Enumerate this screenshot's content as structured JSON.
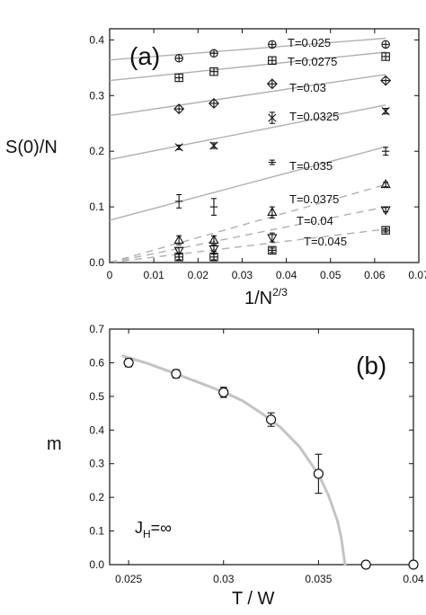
{
  "chart_data": [
    {
      "type": "scatter",
      "panel_label": "(a)",
      "xlabel_main": "1/N",
      "xlabel_exponent": "2/3",
      "ylabel": "S(0)/N",
      "xlim": [
        0,
        0.07
      ],
      "ylim": [
        0,
        0.42
      ],
      "xticks": [
        "0",
        "0.01",
        "0.02",
        "0.03",
        "0.04",
        "0.05",
        "0.06",
        "0.07"
      ],
      "yticks": [
        "0.0",
        "0.1",
        "0.2",
        "0.3",
        "0.4"
      ],
      "series": [
        {
          "name": "T=0.025",
          "marker": "circle-plus",
          "x": [
            0.0157,
            0.0236,
            0.0368,
            0.0625
          ],
          "y": [
            0.367,
            0.376,
            0.392,
            0.392
          ],
          "fit": [
            [
              0,
              0.364
            ],
            [
              0.0625,
              0.403
            ]
          ],
          "fit_style": "solid"
        },
        {
          "name": "T=0.0275",
          "marker": "square-plus",
          "x": [
            0.0157,
            0.0236,
            0.0368,
            0.0625
          ],
          "y": [
            0.332,
            0.343,
            0.363,
            0.37
          ],
          "fit": [
            [
              0,
              0.327
            ],
            [
              0.0625,
              0.378
            ]
          ],
          "fit_style": "solid"
        },
        {
          "name": "T=0.03",
          "marker": "diamond-plus",
          "x": [
            0.0157,
            0.0236,
            0.0368,
            0.0625
          ],
          "y": [
            0.276,
            0.286,
            0.321,
            0.327
          ],
          "fit": [
            [
              0,
              0.264
            ],
            [
              0.0625,
              0.338
            ]
          ],
          "fit_style": "solid"
        },
        {
          "name": "T=0.0325",
          "marker": "cross",
          "x": [
            0.0157,
            0.0236,
            0.0368,
            0.0625
          ],
          "y": [
            0.207,
            0.21,
            0.26,
            0.272
          ],
          "err": [
            0.004,
            0.005,
            0.01,
            0.005
          ],
          "fit": [
            [
              0,
              0.185
            ],
            [
              0.0625,
              0.283
            ]
          ],
          "fit_style": "solid"
        },
        {
          "name": "T=0.035",
          "marker": "errorbar",
          "x": [
            0.0157,
            0.0236,
            0.0368,
            0.0625
          ],
          "y": [
            0.11,
            0.1,
            0.18,
            0.2
          ],
          "err": [
            0.012,
            0.015,
            0.004,
            0.007
          ],
          "fit": [
            [
              0,
              0.076
            ],
            [
              0.0625,
              0.208
            ]
          ],
          "fit_style": "solid"
        },
        {
          "name": "T=0.0375",
          "marker": "triangle-up",
          "x": [
            0.0157,
            0.0236,
            0.0368,
            0.0625
          ],
          "y": [
            0.04,
            0.04,
            0.09,
            0.14
          ],
          "err": [
            0.008,
            0.008,
            0.01,
            0.004
          ],
          "fit": [
            [
              0,
              0.0
            ],
            [
              0.0625,
              0.14
            ]
          ],
          "fit_style": "dashed"
        },
        {
          "name": "T=0.04",
          "marker": "triangle-down",
          "x": [
            0.0157,
            0.0236,
            0.0368,
            0.0625
          ],
          "y": [
            0.022,
            0.025,
            0.045,
            0.095
          ],
          "err": [
            0.005,
            0.005,
            0.008,
            0.004
          ],
          "fit": [
            [
              0,
              0.0
            ],
            [
              0.0625,
              0.1
            ]
          ],
          "fit_style": "dashed"
        },
        {
          "name": "T=0.045",
          "marker": "square-plus",
          "x": [
            0.0157,
            0.0236,
            0.0368,
            0.0625
          ],
          "y": [
            0.01,
            0.01,
            0.022,
            0.058
          ],
          "err": [
            0.005,
            0.005,
            0.004,
            0.003
          ],
          "fit": [
            [
              0,
              0.0
            ],
            [
              0.0625,
              0.06
            ]
          ],
          "fit_style": "dashed"
        }
      ]
    },
    {
      "type": "scatter",
      "panel_label": "(b)",
      "xlabel": "T / W",
      "ylabel": "m",
      "annotation": "Jₕ=∞",
      "annotation_main": "J",
      "annotation_sub": "H",
      "annotation_rest": "=∞",
      "xlim": [
        0.024,
        0.04
      ],
      "ylim": [
        0,
        0.7
      ],
      "xticks": [
        "0.025",
        "0.03",
        "0.035",
        "0.04"
      ],
      "yticks": [
        "0.0",
        "0.1",
        "0.2",
        "0.3",
        "0.4",
        "0.5",
        "0.6",
        "0.7"
      ],
      "x": [
        0.025,
        0.0275,
        0.03,
        0.0325,
        0.035,
        0.0375,
        0.04
      ],
      "y": [
        0.6,
        0.567,
        0.512,
        0.431,
        0.27,
        0.0,
        0.0
      ],
      "err": [
        0.012,
        0.012,
        0.015,
        0.02,
        0.058,
        0,
        0
      ],
      "curve": [
        [
          0.0247,
          0.62
        ],
        [
          0.026,
          0.598
        ],
        [
          0.0275,
          0.567
        ],
        [
          0.029,
          0.535
        ],
        [
          0.03,
          0.513
        ],
        [
          0.031,
          0.487
        ],
        [
          0.032,
          0.45
        ],
        [
          0.033,
          0.408
        ],
        [
          0.034,
          0.35
        ],
        [
          0.035,
          0.268
        ],
        [
          0.0355,
          0.21
        ],
        [
          0.036,
          0.13
        ],
        [
          0.0362,
          0.08
        ],
        [
          0.0364,
          0.0
        ]
      ]
    }
  ]
}
